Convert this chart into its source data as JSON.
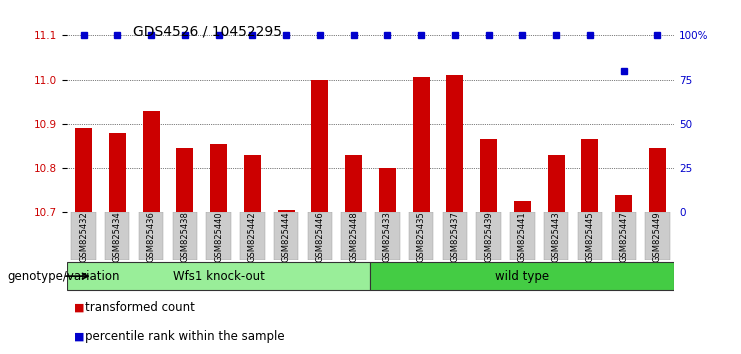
{
  "title": "GDS4526 / 10452295",
  "categories": [
    "GSM825432",
    "GSM825434",
    "GSM825436",
    "GSM825438",
    "GSM825440",
    "GSM825442",
    "GSM825444",
    "GSM825446",
    "GSM825448",
    "GSM825433",
    "GSM825435",
    "GSM825437",
    "GSM825439",
    "GSM825441",
    "GSM825443",
    "GSM825445",
    "GSM825447",
    "GSM825449"
  ],
  "bar_values": [
    10.89,
    10.88,
    10.93,
    10.845,
    10.855,
    10.83,
    10.705,
    11.0,
    10.83,
    10.8,
    11.005,
    11.01,
    10.865,
    10.725,
    10.83,
    10.865,
    10.74,
    10.845
  ],
  "percentile_values": [
    100,
    100,
    100,
    100,
    100,
    100,
    100,
    100,
    100,
    100,
    100,
    100,
    100,
    100,
    100,
    100,
    80,
    100
  ],
  "ymin": 10.7,
  "ymax": 11.1,
  "yticks": [
    10.7,
    10.8,
    10.9,
    11.0,
    11.1
  ],
  "right_ytick_vals": [
    0,
    25,
    50,
    75,
    100
  ],
  "right_ytick_labels": [
    "0",
    "25",
    "50",
    "75",
    "100%"
  ],
  "bar_color": "#cc0000",
  "percentile_color": "#0000cc",
  "group1_label": "Wfs1 knock-out",
  "group2_label": "wild type",
  "group1_color": "#99ee99",
  "group2_color": "#44cc44",
  "group1_count": 9,
  "group2_count": 9,
  "legend_bar_label": "transformed count",
  "legend_perc_label": "percentile rank within the sample",
  "genotype_label": "genotype/variation",
  "title_fontsize": 10,
  "tick_fontsize": 7.5,
  "label_fontsize": 8.5
}
